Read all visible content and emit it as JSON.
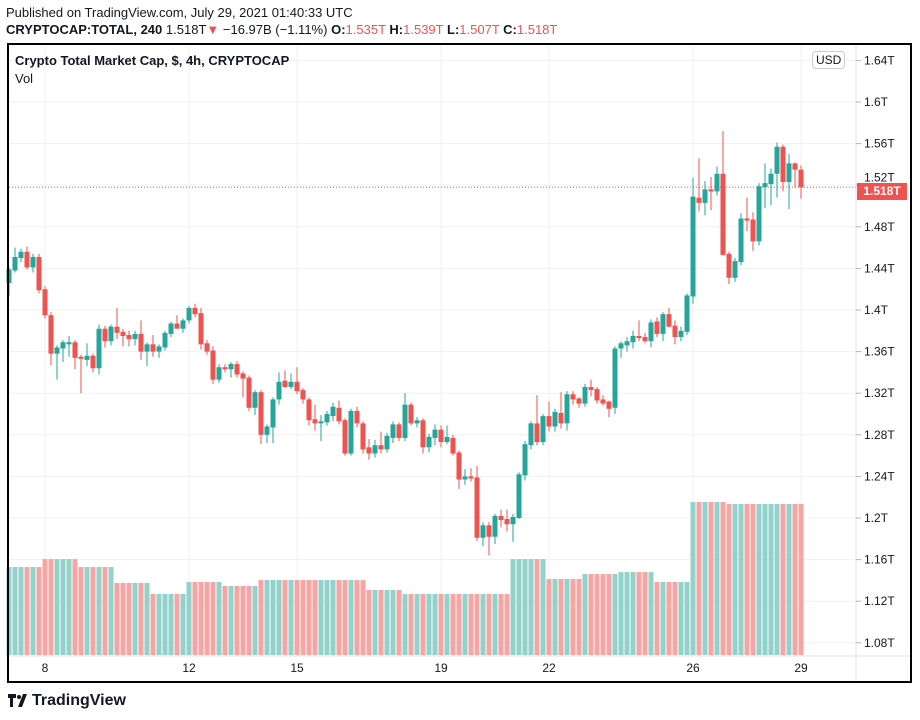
{
  "published": "Published on TradingView.com, July 29, 2021 01:40:33 UTC",
  "legend": {
    "symbol": "CRYPTOCAP:TOTAL, 240",
    "last": "1.518T",
    "change": "−16.97B (−1.11%)",
    "direction_icon": "triangle-down-icon",
    "o_label": "O:",
    "o": "1.535T",
    "h_label": "H:",
    "h": "1.539T",
    "l_label": "L:",
    "l": "1.507T",
    "c_label": "C:",
    "c": "1.518T"
  },
  "pane": {
    "title": "Crypto Total Market Cap, $, 4h, CRYPTOCAP",
    "indicator": "Vol",
    "currency": "USD"
  },
  "current_price_label": "1.518T",
  "logo": "TradingView",
  "colors": {
    "up": "#26a69a",
    "down": "#ef5350",
    "vol_up": "#92d2cb",
    "vol_down": "#f5a6a4",
    "grid": "#f0f0f3"
  },
  "chart_data": {
    "type": "candlestick",
    "interval": "4h",
    "current_price": 1.518,
    "y_ticks": [
      1.08,
      1.12,
      1.16,
      1.2,
      1.24,
      1.28,
      1.32,
      1.36,
      1.4,
      1.44,
      1.48,
      1.52,
      1.56,
      1.6,
      1.64
    ],
    "y_tick_labels": [
      "1.08T",
      "1.12T",
      "1.16T",
      "1.2T",
      "1.24T",
      "1.28T",
      "1.32T",
      "1.36T",
      "1.4T",
      "1.44T",
      "1.48T",
      "1.52T",
      "1.56T",
      "1.6T",
      "1.64T"
    ],
    "x_ticks": [
      {
        "label": "8",
        "candle": 7
      },
      {
        "label": "12",
        "candle": 31
      },
      {
        "label": "15",
        "candle": 49
      },
      {
        "label": "19",
        "candle": 73
      },
      {
        "label": "22",
        "candle": 91
      },
      {
        "label": "26",
        "candle": 115
      },
      {
        "label": "29",
        "candle": 133
      }
    ],
    "grid": true,
    "candles_ohlc": [
      [
        1.426,
        1.441,
        1.414,
        1.439
      ],
      [
        1.438,
        1.46,
        1.436,
        1.451
      ],
      [
        1.45,
        1.459,
        1.446,
        1.456
      ],
      [
        1.456,
        1.461,
        1.439,
        1.441
      ],
      [
        1.441,
        1.454,
        1.436,
        1.451
      ],
      [
        1.451,
        1.454,
        1.416,
        1.419
      ],
      [
        1.42,
        1.423,
        1.392,
        1.395
      ],
      [
        1.395,
        1.398,
        1.347,
        1.358
      ],
      [
        1.358,
        1.366,
        1.333,
        1.364
      ],
      [
        1.363,
        1.371,
        1.35,
        1.369
      ],
      [
        1.367,
        1.375,
        1.355,
        1.369
      ],
      [
        1.369,
        1.371,
        1.343,
        1.354
      ],
      [
        1.355,
        1.357,
        1.32,
        1.353
      ],
      [
        1.352,
        1.368,
        1.346,
        1.356
      ],
      [
        1.356,
        1.358,
        1.34,
        1.344
      ],
      [
        1.344,
        1.386,
        1.338,
        1.382
      ],
      [
        1.382,
        1.385,
        1.364,
        1.37
      ],
      [
        1.37,
        1.386,
        1.366,
        1.384
      ],
      [
        1.384,
        1.402,
        1.372,
        1.378
      ],
      [
        1.379,
        1.382,
        1.365,
        1.375
      ],
      [
        1.376,
        1.38,
        1.365,
        1.372
      ],
      [
        1.372,
        1.38,
        1.366,
        1.377
      ],
      [
        1.377,
        1.39,
        1.352,
        1.36
      ],
      [
        1.36,
        1.369,
        1.346,
        1.367
      ],
      [
        1.367,
        1.376,
        1.355,
        1.36
      ],
      [
        1.36,
        1.367,
        1.354,
        1.365
      ],
      [
        1.364,
        1.38,
        1.361,
        1.378
      ],
      [
        1.377,
        1.389,
        1.374,
        1.387
      ],
      [
        1.387,
        1.395,
        1.384,
        1.382
      ],
      [
        1.382,
        1.392,
        1.378,
        1.39
      ],
      [
        1.39,
        1.404,
        1.387,
        1.402
      ],
      [
        1.402,
        1.406,
        1.393,
        1.396
      ],
      [
        1.397,
        1.402,
        1.362,
        1.367
      ],
      [
        1.368,
        1.371,
        1.357,
        1.36
      ],
      [
        1.361,
        1.365,
        1.329,
        1.333
      ],
      [
        1.333,
        1.348,
        1.33,
        1.345
      ],
      [
        1.345,
        1.348,
        1.34,
        1.343
      ],
      [
        1.343,
        1.35,
        1.335,
        1.348
      ],
      [
        1.348,
        1.351,
        1.335,
        1.338
      ],
      [
        1.339,
        1.341,
        1.316,
        1.334
      ],
      [
        1.335,
        1.337,
        1.303,
        1.306
      ],
      [
        1.306,
        1.323,
        1.299,
        1.321
      ],
      [
        1.321,
        1.323,
        1.271,
        1.28
      ],
      [
        1.28,
        1.29,
        1.272,
        1.288
      ],
      [
        1.287,
        1.316,
        1.272,
        1.314
      ],
      [
        1.314,
        1.34,
        1.309,
        1.331
      ],
      [
        1.332,
        1.342,
        1.325,
        1.326
      ],
      [
        1.326,
        1.339,
        1.324,
        1.331
      ],
      [
        1.331,
        1.345,
        1.319,
        1.322
      ],
      [
        1.323,
        1.325,
        1.31,
        1.314
      ],
      [
        1.314,
        1.316,
        1.289,
        1.294
      ],
      [
        1.295,
        1.309,
        1.284,
        1.291
      ],
      [
        1.291,
        1.299,
        1.274,
        1.293
      ],
      [
        1.292,
        1.303,
        1.289,
        1.3
      ],
      [
        1.298,
        1.311,
        1.293,
        1.307
      ],
      [
        1.306,
        1.313,
        1.29,
        1.293
      ],
      [
        1.294,
        1.296,
        1.26,
        1.262
      ],
      [
        1.262,
        1.305,
        1.26,
        1.303
      ],
      [
        1.303,
        1.307,
        1.287,
        1.291
      ],
      [
        1.291,
        1.293,
        1.262,
        1.266
      ],
      [
        1.268,
        1.276,
        1.256,
        1.262
      ],
      [
        1.262,
        1.275,
        1.258,
        1.27
      ],
      [
        1.27,
        1.283,
        1.262,
        1.266
      ],
      [
        1.266,
        1.282,
        1.263,
        1.279
      ],
      [
        1.277,
        1.293,
        1.272,
        1.29
      ],
      [
        1.29,
        1.292,
        1.274,
        1.277
      ],
      [
        1.277,
        1.32,
        1.274,
        1.309
      ],
      [
        1.309,
        1.311,
        1.289,
        1.291
      ],
      [
        1.291,
        1.297,
        1.287,
        1.294
      ],
      [
        1.294,
        1.296,
        1.262,
        1.268
      ],
      [
        1.268,
        1.281,
        1.263,
        1.278
      ],
      [
        1.277,
        1.29,
        1.27,
        1.285
      ],
      [
        1.285,
        1.289,
        1.268,
        1.273
      ],
      [
        1.273,
        1.289,
        1.271,
        1.278
      ],
      [
        1.277,
        1.28,
        1.26,
        1.262
      ],
      [
        1.263,
        1.265,
        1.228,
        1.237
      ],
      [
        1.237,
        1.247,
        1.232,
        1.24
      ],
      [
        1.24,
        1.248,
        1.235,
        1.238
      ],
      [
        1.239,
        1.25,
        1.178,
        1.181
      ],
      [
        1.181,
        1.196,
        1.173,
        1.193
      ],
      [
        1.193,
        1.196,
        1.164,
        1.182
      ],
      [
        1.182,
        1.204,
        1.175,
        1.202
      ],
      [
        1.202,
        1.208,
        1.191,
        1.198
      ],
      [
        1.199,
        1.208,
        1.187,
        1.194
      ],
      [
        1.194,
        1.204,
        1.177,
        1.201
      ],
      [
        1.2,
        1.244,
        1.199,
        1.242
      ],
      [
        1.241,
        1.274,
        1.236,
        1.271
      ],
      [
        1.27,
        1.293,
        1.266,
        1.291
      ],
      [
        1.291,
        1.318,
        1.27,
        1.273
      ],
      [
        1.273,
        1.3,
        1.27,
        1.298
      ],
      [
        1.298,
        1.312,
        1.283,
        1.288
      ],
      [
        1.288,
        1.305,
        1.283,
        1.302
      ],
      [
        1.301,
        1.321,
        1.286,
        1.291
      ],
      [
        1.291,
        1.322,
        1.284,
        1.319
      ],
      [
        1.319,
        1.322,
        1.309,
        1.314
      ],
      [
        1.315,
        1.316,
        1.306,
        1.31
      ],
      [
        1.31,
        1.329,
        1.307,
        1.326
      ],
      [
        1.326,
        1.333,
        1.317,
        1.323
      ],
      [
        1.324,
        1.326,
        1.31,
        1.313
      ],
      [
        1.314,
        1.318,
        1.308,
        1.31
      ],
      [
        1.312,
        1.313,
        1.297,
        1.305
      ],
      [
        1.306,
        1.365,
        1.3,
        1.363
      ],
      [
        1.363,
        1.37,
        1.354,
        1.368
      ],
      [
        1.366,
        1.374,
        1.36,
        1.37
      ],
      [
        1.369,
        1.38,
        1.363,
        1.375
      ],
      [
        1.375,
        1.39,
        1.37,
        1.373
      ],
      [
        1.374,
        1.378,
        1.368,
        1.37
      ],
      [
        1.37,
        1.391,
        1.364,
        1.388
      ],
      [
        1.389,
        1.393,
        1.374,
        1.377
      ],
      [
        1.377,
        1.398,
        1.37,
        1.396
      ],
      [
        1.396,
        1.402,
        1.383,
        1.384
      ],
      [
        1.385,
        1.39,
        1.367,
        1.374
      ],
      [
        1.374,
        1.384,
        1.37,
        1.38
      ],
      [
        1.379,
        1.416,
        1.376,
        1.414
      ],
      [
        1.413,
        1.527,
        1.406,
        1.509
      ],
      [
        1.508,
        1.546,
        1.495,
        1.503
      ],
      [
        1.503,
        1.524,
        1.491,
        1.516
      ],
      [
        1.516,
        1.528,
        1.496,
        1.514
      ],
      [
        1.514,
        1.538,
        1.51,
        1.531
      ],
      [
        1.531,
        1.572,
        1.452,
        1.453
      ],
      [
        1.454,
        1.456,
        1.425,
        1.431
      ],
      [
        1.431,
        1.45,
        1.427,
        1.447
      ],
      [
        1.446,
        1.493,
        1.443,
        1.488
      ],
      [
        1.488,
        1.508,
        1.476,
        1.486
      ],
      [
        1.487,
        1.494,
        1.457,
        1.466
      ],
      [
        1.466,
        1.522,
        1.462,
        1.519
      ],
      [
        1.518,
        1.541,
        1.498,
        1.522
      ],
      [
        1.521,
        1.536,
        1.501,
        1.531
      ],
      [
        1.531,
        1.561,
        1.508,
        1.557
      ],
      [
        1.557,
        1.559,
        1.514,
        1.523
      ],
      [
        1.523,
        1.55,
        1.497,
        1.541
      ],
      [
        1.541,
        1.542,
        1.518,
        1.535
      ],
      [
        1.535,
        1.539,
        1.507,
        1.518
      ]
    ],
    "volume_relative": [
      0.575,
      0.575,
      0.575,
      0.575,
      0.575,
      0.575,
      0.627,
      0.627,
      0.627,
      0.627,
      0.627,
      0.627,
      0.575,
      0.575,
      0.575,
      0.575,
      0.575,
      0.575,
      0.471,
      0.471,
      0.471,
      0.471,
      0.471,
      0.471,
      0.399,
      0.399,
      0.399,
      0.399,
      0.399,
      0.399,
      0.477,
      0.477,
      0.477,
      0.477,
      0.477,
      0.477,
      0.451,
      0.451,
      0.451,
      0.451,
      0.451,
      0.451,
      0.49,
      0.49,
      0.49,
      0.49,
      0.49,
      0.49,
      0.49,
      0.49,
      0.49,
      0.49,
      0.49,
      0.49,
      0.49,
      0.49,
      0.49,
      0.49,
      0.49,
      0.49,
      0.425,
      0.425,
      0.425,
      0.425,
      0.425,
      0.425,
      0.399,
      0.399,
      0.399,
      0.399,
      0.399,
      0.399,
      0.399,
      0.399,
      0.399,
      0.399,
      0.399,
      0.399,
      0.399,
      0.399,
      0.399,
      0.399,
      0.399,
      0.399,
      0.627,
      0.627,
      0.627,
      0.627,
      0.627,
      0.627,
      0.497,
      0.497,
      0.497,
      0.497,
      0.497,
      0.497,
      0.529,
      0.529,
      0.529,
      0.529,
      0.529,
      0.529,
      0.542,
      0.542,
      0.542,
      0.542,
      0.542,
      0.542,
      0.477,
      0.477,
      0.477,
      0.477,
      0.477,
      0.477,
      1.0,
      1.0,
      1.0,
      1.0,
      1.0,
      1.0,
      0.987,
      0.987,
      0.987,
      0.987,
      0.987,
      0.987,
      0.987,
      0.987,
      0.987,
      0.987,
      0.987,
      0.987,
      0.987
    ]
  }
}
